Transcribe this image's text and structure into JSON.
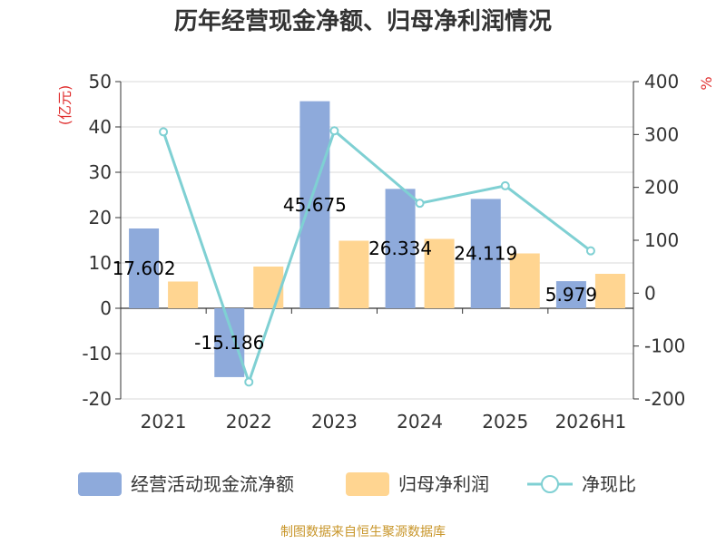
{
  "chart_data": {
    "type": "bar",
    "title": "历年经营现金净额、归母净利润情况",
    "categories": [
      "2021",
      "2022",
      "2023",
      "2024",
      "2025",
      "2026H1"
    ],
    "left_axis_unit": "(亿元)",
    "right_axis_unit": "%",
    "left_axis": {
      "min": -20,
      "max": 50,
      "ticks": [
        "-20",
        "-10",
        "0",
        "10",
        "20",
        "30",
        "40",
        "50"
      ]
    },
    "right_axis": {
      "min": -200,
      "max": 400,
      "ticks": [
        "-200",
        "-100",
        "0",
        "100",
        "200",
        "300",
        "400"
      ]
    },
    "series": [
      {
        "name": "经营活动现金流净额",
        "type": "bar",
        "axis": "left",
        "color": "#8eaadb",
        "values": [
          17.602,
          -15.186,
          45.675,
          26.334,
          24.119,
          5.979
        ],
        "labels": [
          "17.602",
          "-15.186",
          "45.675",
          "26.334",
          "24.119",
          "5.979"
        ]
      },
      {
        "name": "归母净利润",
        "type": "bar",
        "axis": "left",
        "color": "#ffd591",
        "values": [
          5.9,
          9.2,
          14.9,
          15.3,
          12.1,
          7.6
        ]
      },
      {
        "name": "净现比",
        "type": "line",
        "axis": "right",
        "color": "#7fd0d3",
        "values": [
          305,
          -168,
          307,
          170,
          203,
          80
        ]
      }
    ],
    "grid": true,
    "legend_position": "bottom"
  },
  "footer": {
    "source": "制图数据来自恒生聚源数据库"
  }
}
